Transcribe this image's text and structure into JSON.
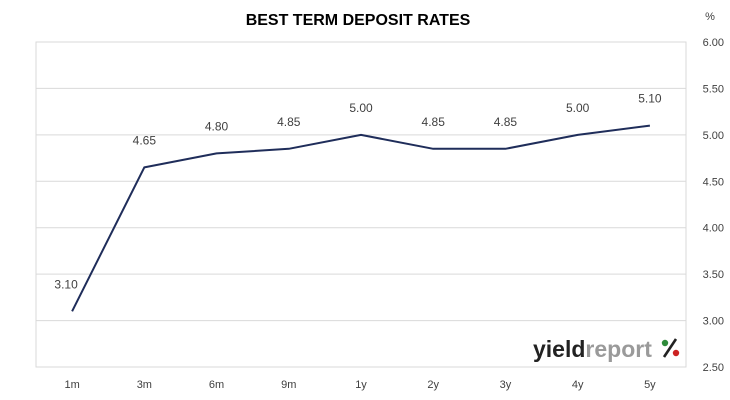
{
  "chart_data": {
    "type": "line",
    "title": "BEST TERM  DEPOSIT  RATES",
    "ylabel": "%",
    "categories": [
      "1m",
      "3m",
      "6m",
      "9m",
      "1y",
      "2y",
      "3y",
      "4y",
      "5y"
    ],
    "series": [
      {
        "values": [
          3.1,
          4.65,
          4.8,
          4.85,
          5.0,
          4.85,
          4.85,
          5.0,
          5.1
        ],
        "data_labels": [
          "3.10",
          "4.65",
          "4.80",
          "4.85",
          "5.00",
          "4.85",
          "4.85",
          "5.00",
          "5.10"
        ],
        "color": "#1f2d5a"
      }
    ],
    "ylim": [
      2.5,
      6.0
    ],
    "yticks": [
      "6.00",
      "5.50",
      "5.00",
      "4.50",
      "4.00",
      "3.50",
      "3.00",
      "2.50"
    ],
    "y_axis_position": "right",
    "grid": true,
    "legend": "none"
  },
  "branding": {
    "logo_text_dark": "yield",
    "logo_text_light": "report",
    "logo_symbol": "%",
    "colors": {
      "dark": "#222222",
      "light": "#9a9a9a",
      "green": "#2e8b3a",
      "red": "#cc2222"
    }
  }
}
